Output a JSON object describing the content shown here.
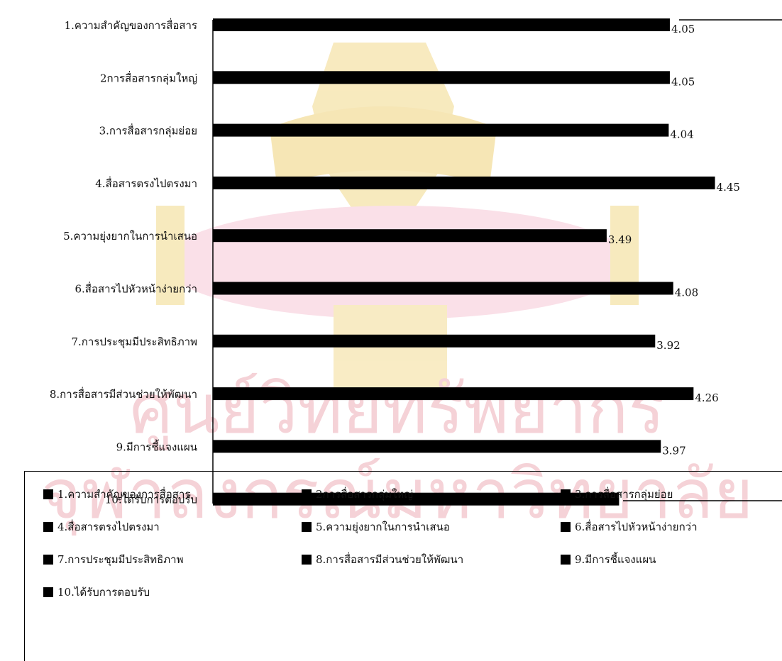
{
  "chart_data": {
    "type": "bar",
    "orientation": "horizontal",
    "categories": [
      "1.ความสำคัญของการสื่อสาร",
      "2การสื่อสารกลุ่มใหญ่",
      "3.การสื่อสารกลุ่มย่อย",
      "4.สื่อสารตรงไปตรงมา",
      "5.ความยุ่งยากในการนำเสนอ",
      "6.สื่อสารไปหัวหน้าง่ายกว่า",
      "7.การประชุมมีประสิทธิภาพ",
      "8.การสื่อสารมีส่วนช่วยให้พัฒนา",
      "9.มีการชี้แจงแผน",
      "10.ได้รับการตอบรับ"
    ],
    "values": [
      4.05,
      4.05,
      4.04,
      4.45,
      3.49,
      4.08,
      3.92,
      4.26,
      3.97,
      3.6
    ],
    "data_labels": [
      "4.05",
      "4.05",
      "4.04",
      "4.45",
      "3.49",
      "4.08",
      "3.92",
      "4.26",
      "3.97",
      ""
    ],
    "bar_color": "#000000",
    "legend_position": "bottom",
    "grid": false
  },
  "legend": {
    "items": [
      "1.ความสำคัญของการสื่อสาร",
      "2การสื่อสารกลุ่มใหญ่",
      "3.การสื่อสารกลุ่มย่อย",
      "4.สื่อสารตรงไปตรงมา",
      "5.ความยุ่งยากในการนำเสนอ",
      "6.สื่อสารไปหัวหน้าง่ายกว่า",
      "7.การประชุมมีประสิทธิภาพ",
      "8.การสื่อสารมีส่วนช่วยให้พัฒนา",
      "9.มีการชี้แจงแผน",
      "10.ได้รับการตอบรับ"
    ]
  },
  "watermark": {
    "text_line1": "ศูนย์วิทยทรัพยากร",
    "text_line2": "จุฬาลงกรณ์มหาวิทยาลัย",
    "color": "#f3c6cc",
    "emblem_color": "#f5e7b0"
  }
}
